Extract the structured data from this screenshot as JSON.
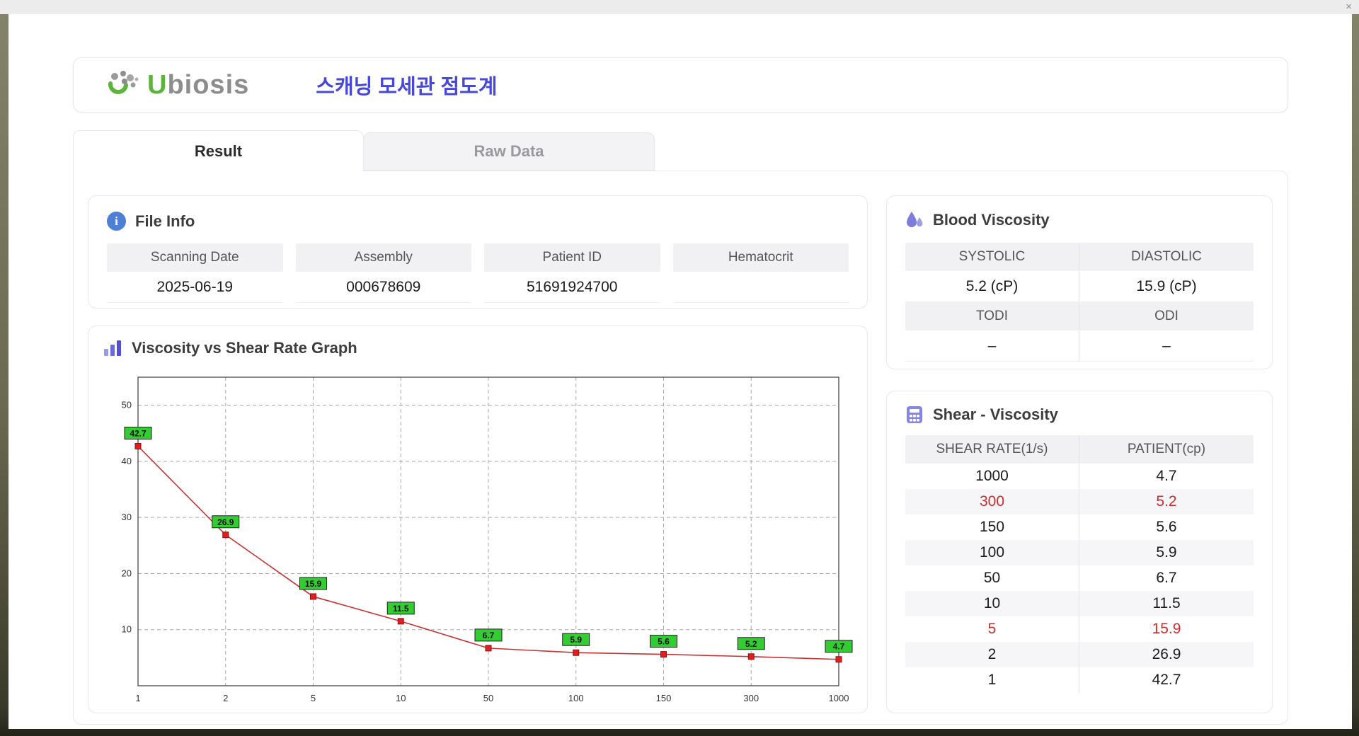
{
  "window": {
    "close_label": "×"
  },
  "header": {
    "brand_u": "U",
    "brand_rest": "biosis",
    "title": "스캐닝 모세관 점도계"
  },
  "tabs": {
    "result": "Result",
    "raw_data": "Raw Data"
  },
  "file_info": {
    "title": "File Info",
    "fields": [
      {
        "label": "Scanning Date",
        "value": "2025-06-19"
      },
      {
        "label": "Assembly",
        "value": "000678609"
      },
      {
        "label": "Patient ID",
        "value": "51691924700"
      },
      {
        "label": "Hematocrit",
        "value": ""
      }
    ]
  },
  "blood_viscosity": {
    "title": "Blood Viscosity",
    "cells": [
      {
        "label": "SYSTOLIC",
        "value": "5.2 (cP)"
      },
      {
        "label": "DIASTOLIC",
        "value": "15.9 (cP)"
      },
      {
        "label": "TODI",
        "value": "–"
      },
      {
        "label": "ODI",
        "value": "–"
      }
    ]
  },
  "graph": {
    "title": "Viscosity vs Shear Rate Graph"
  },
  "chart_data": {
    "type": "line",
    "title": "Viscosity vs Shear Rate Graph",
    "x": [
      1,
      2,
      5,
      10,
      50,
      100,
      150,
      300,
      1000
    ],
    "x_ticks": [
      "1",
      "2",
      "5",
      "10",
      "50",
      "100",
      "150",
      "300",
      "1000"
    ],
    "values": [
      42.7,
      26.9,
      15.9,
      11.5,
      6.7,
      5.9,
      5.6,
      5.2,
      4.7
    ],
    "y_ticks": [
      10,
      20,
      30,
      40,
      50
    ],
    "ylim": [
      0,
      55
    ],
    "xlabel": "",
    "ylabel": "",
    "x_scale": "log-categorical",
    "grid": "dashed",
    "legend": "none",
    "line_color": "#c83232",
    "marker_color": "#e02020",
    "label_bg": "#33cc33"
  },
  "shear_table": {
    "title": "Shear - Viscosity",
    "columns": [
      "SHEAR RATE(1/s)",
      "PATIENT(cp)"
    ],
    "rows": [
      {
        "rate": "1000",
        "patient": "4.7",
        "highlight": false
      },
      {
        "rate": "300",
        "patient": "5.2",
        "highlight": true
      },
      {
        "rate": "150",
        "patient": "5.6",
        "highlight": false
      },
      {
        "rate": "100",
        "patient": "5.9",
        "highlight": false
      },
      {
        "rate": "50",
        "patient": "6.7",
        "highlight": false
      },
      {
        "rate": "10",
        "patient": "11.5",
        "highlight": false
      },
      {
        "rate": "5",
        "patient": "15.9",
        "highlight": true
      },
      {
        "rate": "2",
        "patient": "26.9",
        "highlight": false
      },
      {
        "rate": "1",
        "patient": "42.7",
        "highlight": false
      }
    ]
  },
  "colors": {
    "accent_title": "#4747d8",
    "brand_green": "#5cb53a",
    "highlight_red": "#cf2b2b",
    "header_cell_bg": "#f1f1f4",
    "card_border": "#e8e8ec",
    "label_green": "#33cc33",
    "line_red": "#c83232"
  }
}
